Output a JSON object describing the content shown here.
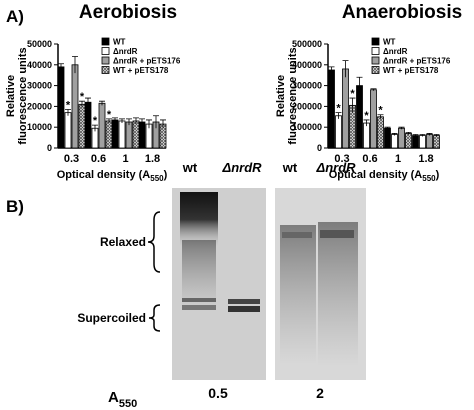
{
  "panel_labels": [
    "A)",
    "B)"
  ],
  "chart_data": [
    {
      "type": "bar",
      "title": "Aerobiosis",
      "ylabel": [
        "Relative",
        "fluorescence units"
      ],
      "xlabel": {
        "text": "Optical density (A",
        "sub": "550",
        "tail": ")"
      },
      "categories": [
        "0.3",
        "0.6",
        "1",
        "1.8"
      ],
      "ylim": [
        0,
        50000
      ],
      "yticks": [
        0,
        10000,
        20000,
        30000,
        40000,
        50000
      ],
      "series": [
        {
          "name": "WT",
          "color": "#000000",
          "values": [
            39000,
            22000,
            13500,
            12500
          ],
          "errors": [
            1500,
            2000,
            1000,
            1500
          ],
          "markers": [
            null,
            null,
            null,
            null
          ]
        },
        {
          "name": "ΔnrdR",
          "color": "#ffffff",
          "values": [
            17000,
            9500,
            13000,
            11500
          ],
          "errors": [
            1500,
            1500,
            1000,
            2000
          ],
          "markers": [
            "*",
            "*",
            null,
            null
          ]
        },
        {
          "name": "ΔnrdR + pETS176",
          "color": "#a0a0a0",
          "values": [
            40000,
            21500,
            12500,
            12500
          ],
          "errors": [
            4000,
            1000,
            1500,
            3000
          ],
          "markers": [
            null,
            null,
            null,
            null
          ]
        },
        {
          "name": "WT + pETS178",
          "color": "#ffffff",
          "pattern": "crosshatch",
          "values": [
            21000,
            13000,
            13000,
            11500
          ],
          "errors": [
            1500,
            1000,
            1500,
            2000
          ],
          "markers": [
            "*",
            "*",
            null,
            null
          ]
        }
      ]
    },
    {
      "type": "bar",
      "title": "Anaerobiosis",
      "ylabel": [
        "Relative",
        "fluorescence units"
      ],
      "xlabel": {
        "text": "Optical density (A",
        "sub": "550",
        "tail": ")"
      },
      "categories": [
        "0.3",
        "0.6",
        "1",
        "1.8"
      ],
      "ylim": [
        0,
        500000
      ],
      "yticks": [
        0,
        100000,
        200000,
        300000,
        400000,
        500000
      ],
      "series": [
        {
          "name": "WT",
          "color": "#000000",
          "values": [
            375000,
            300000,
            95000,
            60000
          ],
          "errors": [
            15000,
            40000,
            5000,
            5000
          ],
          "markers": [
            null,
            null,
            null,
            null
          ]
        },
        {
          "name": "ΔnrdR",
          "color": "#ffffff",
          "values": [
            155000,
            120000,
            65000,
            60000
          ],
          "errors": [
            15000,
            15000,
            5000,
            5000
          ],
          "markers": [
            "*",
            "*",
            null,
            null
          ]
        },
        {
          "name": "ΔnrdR + pETS176",
          "color": "#a0a0a0",
          "values": [
            380000,
            280000,
            95000,
            65000
          ],
          "errors": [
            40000,
            5000,
            5000,
            5000
          ],
          "markers": [
            null,
            null,
            null,
            null
          ]
        },
        {
          "name": "WT + pETS178",
          "color": "#ffffff",
          "pattern": "crosshatch",
          "values": [
            205000,
            150000,
            70000,
            60000
          ],
          "errors": [
            35000,
            10000,
            5000,
            5000
          ],
          "markers": [
            "*",
            "*",
            null,
            null
          ]
        }
      ]
    }
  ],
  "gel": {
    "lanes": [
      "wt",
      "ΔnrdR",
      "wt",
      "ΔnrdR"
    ],
    "forms": [
      "Relaxed",
      "Supercoiled"
    ],
    "od_label": {
      "text": "A",
      "sub": "550"
    },
    "od_values": [
      "0.5",
      "2"
    ]
  }
}
